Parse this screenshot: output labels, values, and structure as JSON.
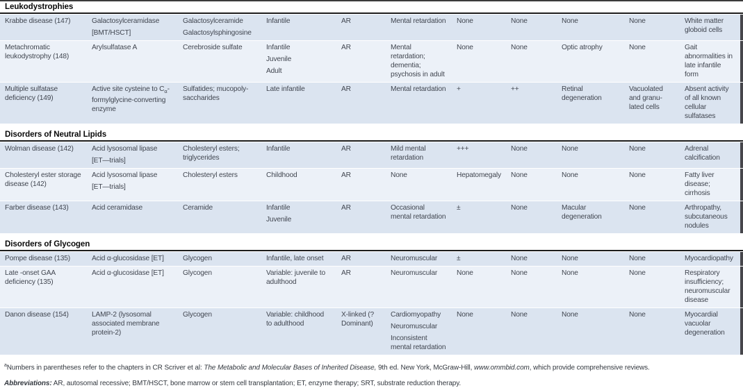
{
  "colors": {
    "row_dark": "#dbe4f0",
    "row_light": "#ecf1f8",
    "section_rule": "#1c1c1c",
    "edge_bar": "#46464b",
    "body_text": "#414650"
  },
  "table": {
    "sections": [
      {
        "title": "Leukodystrophies",
        "rows": [
          {
            "cells": [
              [
                "Krabbe disease (147)"
              ],
              [
                "Galactosylceramidase",
                "[BMT/HSCT]"
              ],
              [
                "Galactosylceramide",
                "Galactosylsphingosine"
              ],
              [
                "Infantile"
              ],
              [
                "AR"
              ],
              [
                "Mental retardation"
              ],
              [
                "None"
              ],
              [
                "None"
              ],
              [
                "None"
              ],
              [
                "None"
              ],
              [
                "White matter globoid cells"
              ]
            ]
          },
          {
            "cells": [
              [
                "Metachromatic leukodystrophy (148)"
              ],
              [
                "Arylsulfatase A"
              ],
              [
                "Cerebroside sulfate"
              ],
              [
                "Infantile",
                "Juvenile",
                "Adult"
              ],
              [
                "AR"
              ],
              [
                "Mental retardation; dementia; psychosis in adult"
              ],
              [
                "None"
              ],
              [
                "None"
              ],
              [
                "Optic atrophy"
              ],
              [
                "None"
              ],
              [
                "Gait abnormalities in late infantile form"
              ]
            ]
          },
          {
            "cells": [
              [
                "Multiple sulfatase deficiency (149)"
              ],
              [
                "Active site cysteine to C<sub>α</sub>-formylglycine-converting enzyme"
              ],
              [
                "Sulfatides; mucopoly-saccharides"
              ],
              [
                "Late infantile"
              ],
              [
                "AR"
              ],
              [
                "Mental retardation"
              ],
              [
                "+"
              ],
              [
                "++"
              ],
              [
                "Retinal degeneration"
              ],
              [
                "Vacuolated and granu-lated cells"
              ],
              [
                "Absent activity of all known cellular sulfatases"
              ]
            ]
          }
        ]
      },
      {
        "title": "Disorders of Neutral Lipids",
        "rows": [
          {
            "cells": [
              [
                "Wolman disease (142)"
              ],
              [
                "Acid lysosomal lipase",
                "[ET—trials]"
              ],
              [
                "Cholesteryl esters; triglycerides"
              ],
              [
                "Infantile"
              ],
              [
                "AR"
              ],
              [
                "Mild mental retardation"
              ],
              [
                "+++"
              ],
              [
                "None"
              ],
              [
                "None"
              ],
              [
                "None"
              ],
              [
                "Adrenal calcification"
              ]
            ]
          },
          {
            "cells": [
              [
                "Cholesteryl ester storage disease (142)"
              ],
              [
                "Acid lysosomal lipase",
                "[ET—trials]"
              ],
              [
                "Cholesteryl esters"
              ],
              [
                "Childhood"
              ],
              [
                "AR"
              ],
              [
                "None"
              ],
              [
                "Hepatomegaly"
              ],
              [
                "None"
              ],
              [
                "None"
              ],
              [
                "None"
              ],
              [
                "Fatty liver disease; cirrhosis"
              ]
            ]
          },
          {
            "cells": [
              [
                "Farber disease (143)"
              ],
              [
                "Acid ceramidase"
              ],
              [
                "Ceramide"
              ],
              [
                "Infantile",
                "Juvenile"
              ],
              [
                "AR"
              ],
              [
                "Occasional mental retardation"
              ],
              [
                "±"
              ],
              [
                "None"
              ],
              [
                "Macular degeneration"
              ],
              [
                "None"
              ],
              [
                "Arthropathy, subcutaneous nodules"
              ]
            ]
          }
        ]
      },
      {
        "title": "Disorders of Glycogen",
        "rows": [
          {
            "cells": [
              [
                "Pompe disease (135)"
              ],
              [
                "Acid α-glucosidase [ET]"
              ],
              [
                "Glycogen"
              ],
              [
                "Infantile, late onset"
              ],
              [
                "AR"
              ],
              [
                "Neuromuscular"
              ],
              [
                "±"
              ],
              [
                "None"
              ],
              [
                "None"
              ],
              [
                "None"
              ],
              [
                "Myocardiopathy"
              ]
            ]
          },
          {
            "cells": [
              [
                "Late -onset GAA deficiency (135)"
              ],
              [
                "Acid α-glucosidase [ET]"
              ],
              [
                "Glycogen"
              ],
              [
                "Variable: juvenile to adulthood"
              ],
              [
                "AR"
              ],
              [
                "Neuromuscular"
              ],
              [
                "None"
              ],
              [
                "None"
              ],
              [
                "None"
              ],
              [
                "None"
              ],
              [
                "Respiratory insufficiency; neuromuscular disease"
              ]
            ]
          },
          {
            "cells": [
              [
                "Danon disease (154)"
              ],
              [
                "LAMP-2 (lysosomal associated membrane protein-2)"
              ],
              [
                "Glycogen"
              ],
              [
                "Variable: childhood to adulthood"
              ],
              [
                "X-linked (?Dominant)"
              ],
              [
                "Cardiomyopathy",
                "Neuromuscular",
                "Inconsistent mental retardation"
              ],
              [
                "None"
              ],
              [
                "None"
              ],
              [
                "None"
              ],
              [
                "None"
              ],
              [
                "Myocardial vacuolar degeneration"
              ]
            ]
          }
        ]
      }
    ],
    "footnotes": [
      "<sup>a</sup>Numbers in parentheses refer to the chapters in CR Scriver et al: <i>The Metabolic and Molecular Bases of Inherited Disease,</i> 9th ed. New York, McGraw-Hill, <i>www.ommbid.com</i>, which provide comprehensive reviews.",
      "<b><i>Abbreviations:</i></b> AR, autosomal recessive; BMT/HSCT, bone marrow or stem cell transplantation; ET, enzyme therapy; SRT, substrate reduction therapy."
    ]
  }
}
